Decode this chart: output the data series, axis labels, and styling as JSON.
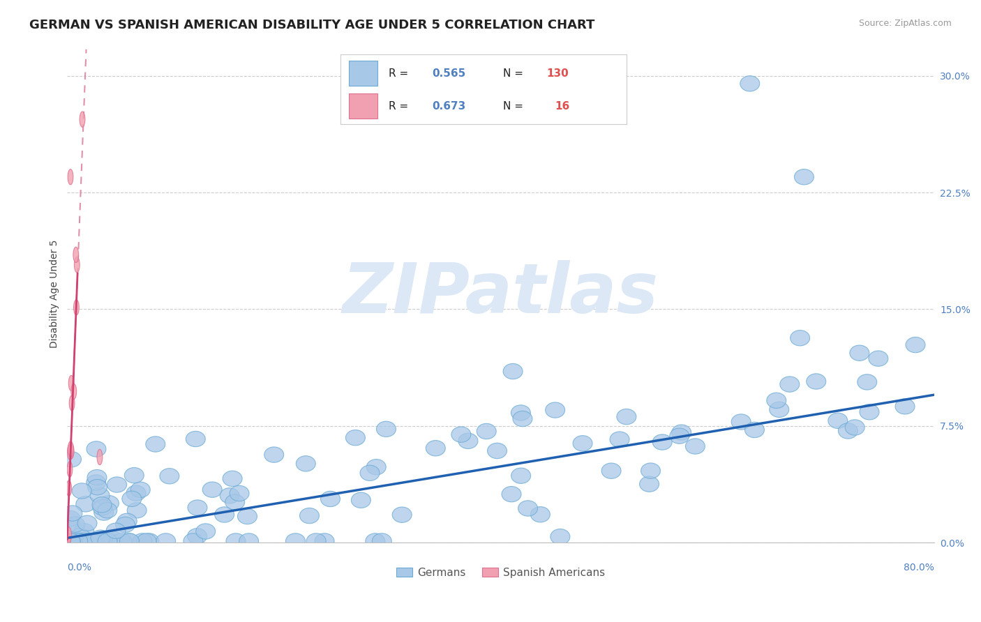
{
  "title": "GERMAN VS SPANISH AMERICAN DISABILITY AGE UNDER 5 CORRELATION CHART",
  "source": "Source: ZipAtlas.com",
  "ylabel": "Disability Age Under 5",
  "yticks_labels": [
    "0.0%",
    "7.5%",
    "15.0%",
    "22.5%",
    "30.0%"
  ],
  "ytick_vals": [
    0.0,
    7.5,
    15.0,
    22.5,
    30.0
  ],
  "xlim": [
    0,
    80
  ],
  "ylim": [
    0,
    32
  ],
  "blue_fill": "#a8c8e8",
  "blue_edge": "#6aaad4",
  "pink_fill": "#f0a0b0",
  "pink_edge": "#e07090",
  "blue_line_color": "#2060b0",
  "pink_line_solid_color": "#d04070",
  "pink_line_dash_color": "#e090a8",
  "watermark_text": "ZIPatlas",
  "watermark_color": "#dce8f5",
  "ytick_color": "#5080c0",
  "xtick_color": "#5080c0",
  "title_color": "#222222",
  "ylabel_color": "#444444",
  "legend_r_color": "#5080c0",
  "legend_n_color": "#e05050",
  "title_fontsize": 13,
  "source_fontsize": 9,
  "ylabel_fontsize": 10,
  "tick_fontsize": 10,
  "legend_fontsize": 12,
  "blue_slope": 0.115,
  "blue_intercept": 0.3,
  "pink_slope_solid": 18.0,
  "pink_intercept_solid": 0.2,
  "pink_solid_x_start": 0.0,
  "pink_solid_x_end": 1.0,
  "pink_dash_x_start": 0.15,
  "pink_dash_x_end": 1.8
}
